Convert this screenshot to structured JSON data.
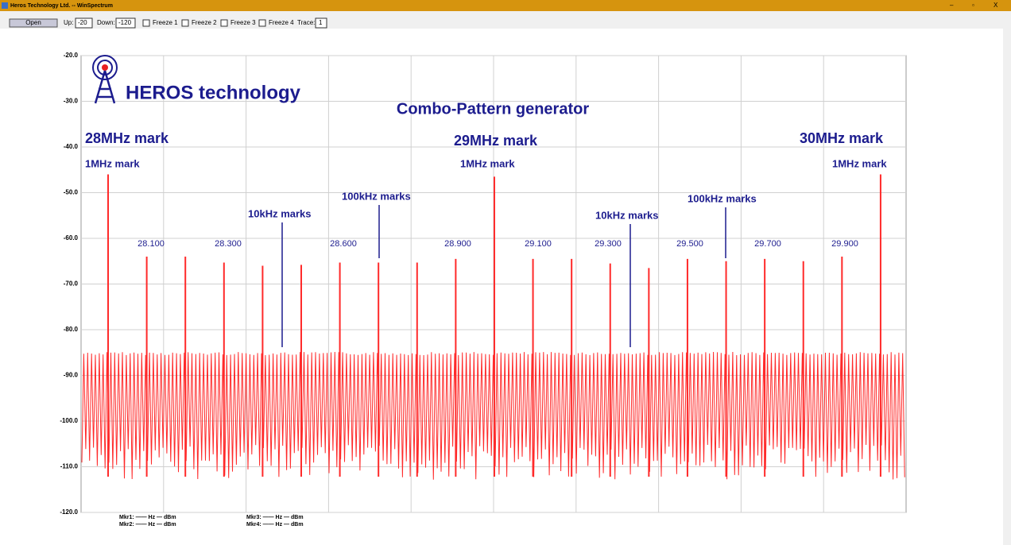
{
  "window": {
    "title": "Heros Technology Ltd. -- WinSpectrum",
    "controls": [
      "–",
      "▫",
      "X"
    ]
  },
  "toolbar": {
    "open": "Open",
    "up_label": "Up:",
    "up_value": "-20",
    "down_label": "Down:",
    "down_value": "-120",
    "freeze": [
      "Freeze 1",
      "Freeze 2",
      "Freeze 3",
      "Freeze 4"
    ],
    "trace_label": "Trace:",
    "trace_value": "1"
  },
  "chart_data": {
    "type": "spikes",
    "title": "Combo-Pattern generator",
    "logo": "HEROS technology",
    "color": "#ff2a2a",
    "grid": true,
    "xlim": [
      27.93,
      30.066
    ],
    "ylim": [
      -120,
      -20
    ],
    "yticks": [
      {
        "value": -20,
        "label": "-20.0"
      },
      {
        "value": -30,
        "label": "-30.0"
      },
      {
        "value": -40,
        "label": "-40.0"
      },
      {
        "value": -50,
        "label": "-50.0"
      },
      {
        "value": -60,
        "label": "-60.0"
      },
      {
        "value": -70,
        "label": "-70.0"
      },
      {
        "value": -80,
        "label": "-80.0"
      },
      {
        "value": -90,
        "label": "-90.0"
      },
      {
        "value": -100,
        "label": "-100.0"
      },
      {
        "value": -110,
        "label": "-110.0"
      },
      {
        "value": -120,
        "label": "-120.0"
      }
    ],
    "x": [
      28.0,
      28.1,
      28.2,
      28.3,
      28.4,
      28.5,
      28.6,
      28.7,
      28.8,
      28.9,
      29.0,
      29.1,
      29.2,
      29.3,
      29.4,
      29.5,
      29.6,
      29.7,
      29.8,
      29.9,
      30.0
    ],
    "values": [
      -46,
      -64,
      -64,
      -65.3,
      -66,
      -65.8,
      -65.3,
      -65.3,
      -65.3,
      -64.5,
      -46.5,
      -64.5,
      -64.5,
      -65.5,
      -66.5,
      -64.5,
      -65,
      -64.5,
      -65,
      -64,
      -46
    ],
    "annotations": [
      "28MHz mark",
      "1MHz mark",
      "29MHz mark",
      "1MHz mark",
      "30MHz mark",
      "1MHz mark",
      "10kHz marks",
      "100kHz marks",
      "10kHz marks",
      "100kHz marks"
    ],
    "freq_labels": [
      "28.100",
      "28.300",
      "28.600",
      "28.900",
      "29.100",
      "29.300",
      "29.500",
      "29.700",
      "29.900"
    ]
  },
  "markers": [
    "Mkr1: —— Hz — dBm",
    "Mkr2: —— Hz — dBm",
    "Mkr3: —— Hz — dBm",
    "Mkr4: —— Hz — dBm"
  ]
}
